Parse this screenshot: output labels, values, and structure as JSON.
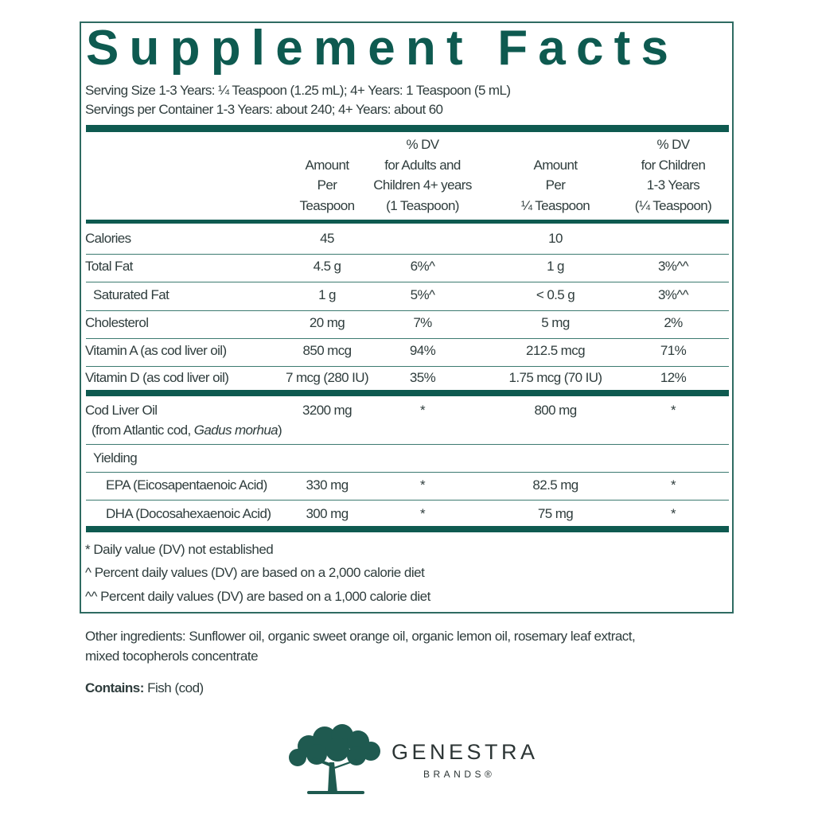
{
  "title": "Supplement Facts",
  "serving_size": "Serving Size 1-3 Years: ¼ Teaspoon (1.25 mL); 4+ Years: 1 Teaspoon (5 mL)",
  "servings_per_container": "Servings per Container 1-3 Years: about 240; 4+ Years: about 60",
  "columns": [
    [
      "Amount",
      "Per",
      "Teaspoon"
    ],
    [
      "% DV",
      "for Adults and",
      "Children 4+ years",
      "(1 Teaspoon)"
    ],
    [
      "Amount",
      "Per",
      "¼  Teaspoon"
    ],
    [
      "% DV",
      "for Children",
      "1-3  Years",
      "(¼ Teaspoon)"
    ]
  ],
  "rows": [
    {
      "name": "Calories",
      "values": [
        "45",
        "",
        "10",
        ""
      ]
    },
    {
      "name": "Total Fat",
      "values": [
        "4.5 g",
        "6%^",
        "1 g",
        "3%^^"
      ]
    },
    {
      "name": "Saturated Fat",
      "indent": 1,
      "values": [
        "1 g",
        "5%^",
        "< 0.5 g",
        "3%^^"
      ]
    },
    {
      "name": "Cholesterol",
      "values": [
        "20 mg",
        "7%",
        "5 mg",
        "2%"
      ]
    },
    {
      "name": "Vitamin A (as cod liver oil)",
      "values": [
        "850 mcg",
        "94%",
        "212.5 mcg",
        "71%"
      ]
    },
    {
      "name": "Vitamin D (as cod liver oil)",
      "values": [
        "7 mcg (280 IU)",
        "35%",
        "1.75 mcg (70 IU)",
        "12%"
      ]
    },
    {
      "name": "Cod Liver Oil",
      "sub": "(from Atlantic cod, ",
      "sub_italic": "Gadus morhua",
      "sub_end": ")",
      "values": [
        "3200 mg",
        "*",
        "800 mg",
        "*"
      ]
    },
    {
      "name": "Yielding",
      "indent": 1,
      "values": [
        "",
        "",
        "",
        ""
      ]
    },
    {
      "name": "EPA (Eicosapentaenoic Acid)",
      "indent": 2,
      "values": [
        "330 mg",
        "*",
        "82.5 mg",
        "*"
      ]
    },
    {
      "name": "DHA (Docosahexaenoic Acid)",
      "indent": 2,
      "values": [
        "300 mg",
        "*",
        "75 mg",
        "*"
      ]
    }
  ],
  "footnotes": [
    "* Daily value (DV) not established",
    "^ Percent daily values (DV) are based on a 2,000 calorie diet",
    "^^ Percent daily values (DV) are based on a 1,000 calorie diet"
  ],
  "other_ingredients": [
    "Other ingredients: Sunflower oil, organic sweet orange oil, organic lemon oil, rosemary leaf extract,",
    "mixed tocopherols concentrate"
  ],
  "contains_label": "Contains:",
  "contains_value": " Fish (cod)",
  "logo": {
    "name": "GENESTRA",
    "sub": "BRANDS®"
  },
  "colors": {
    "accent": "#0e5a50",
    "text": "#2f3d3d"
  }
}
